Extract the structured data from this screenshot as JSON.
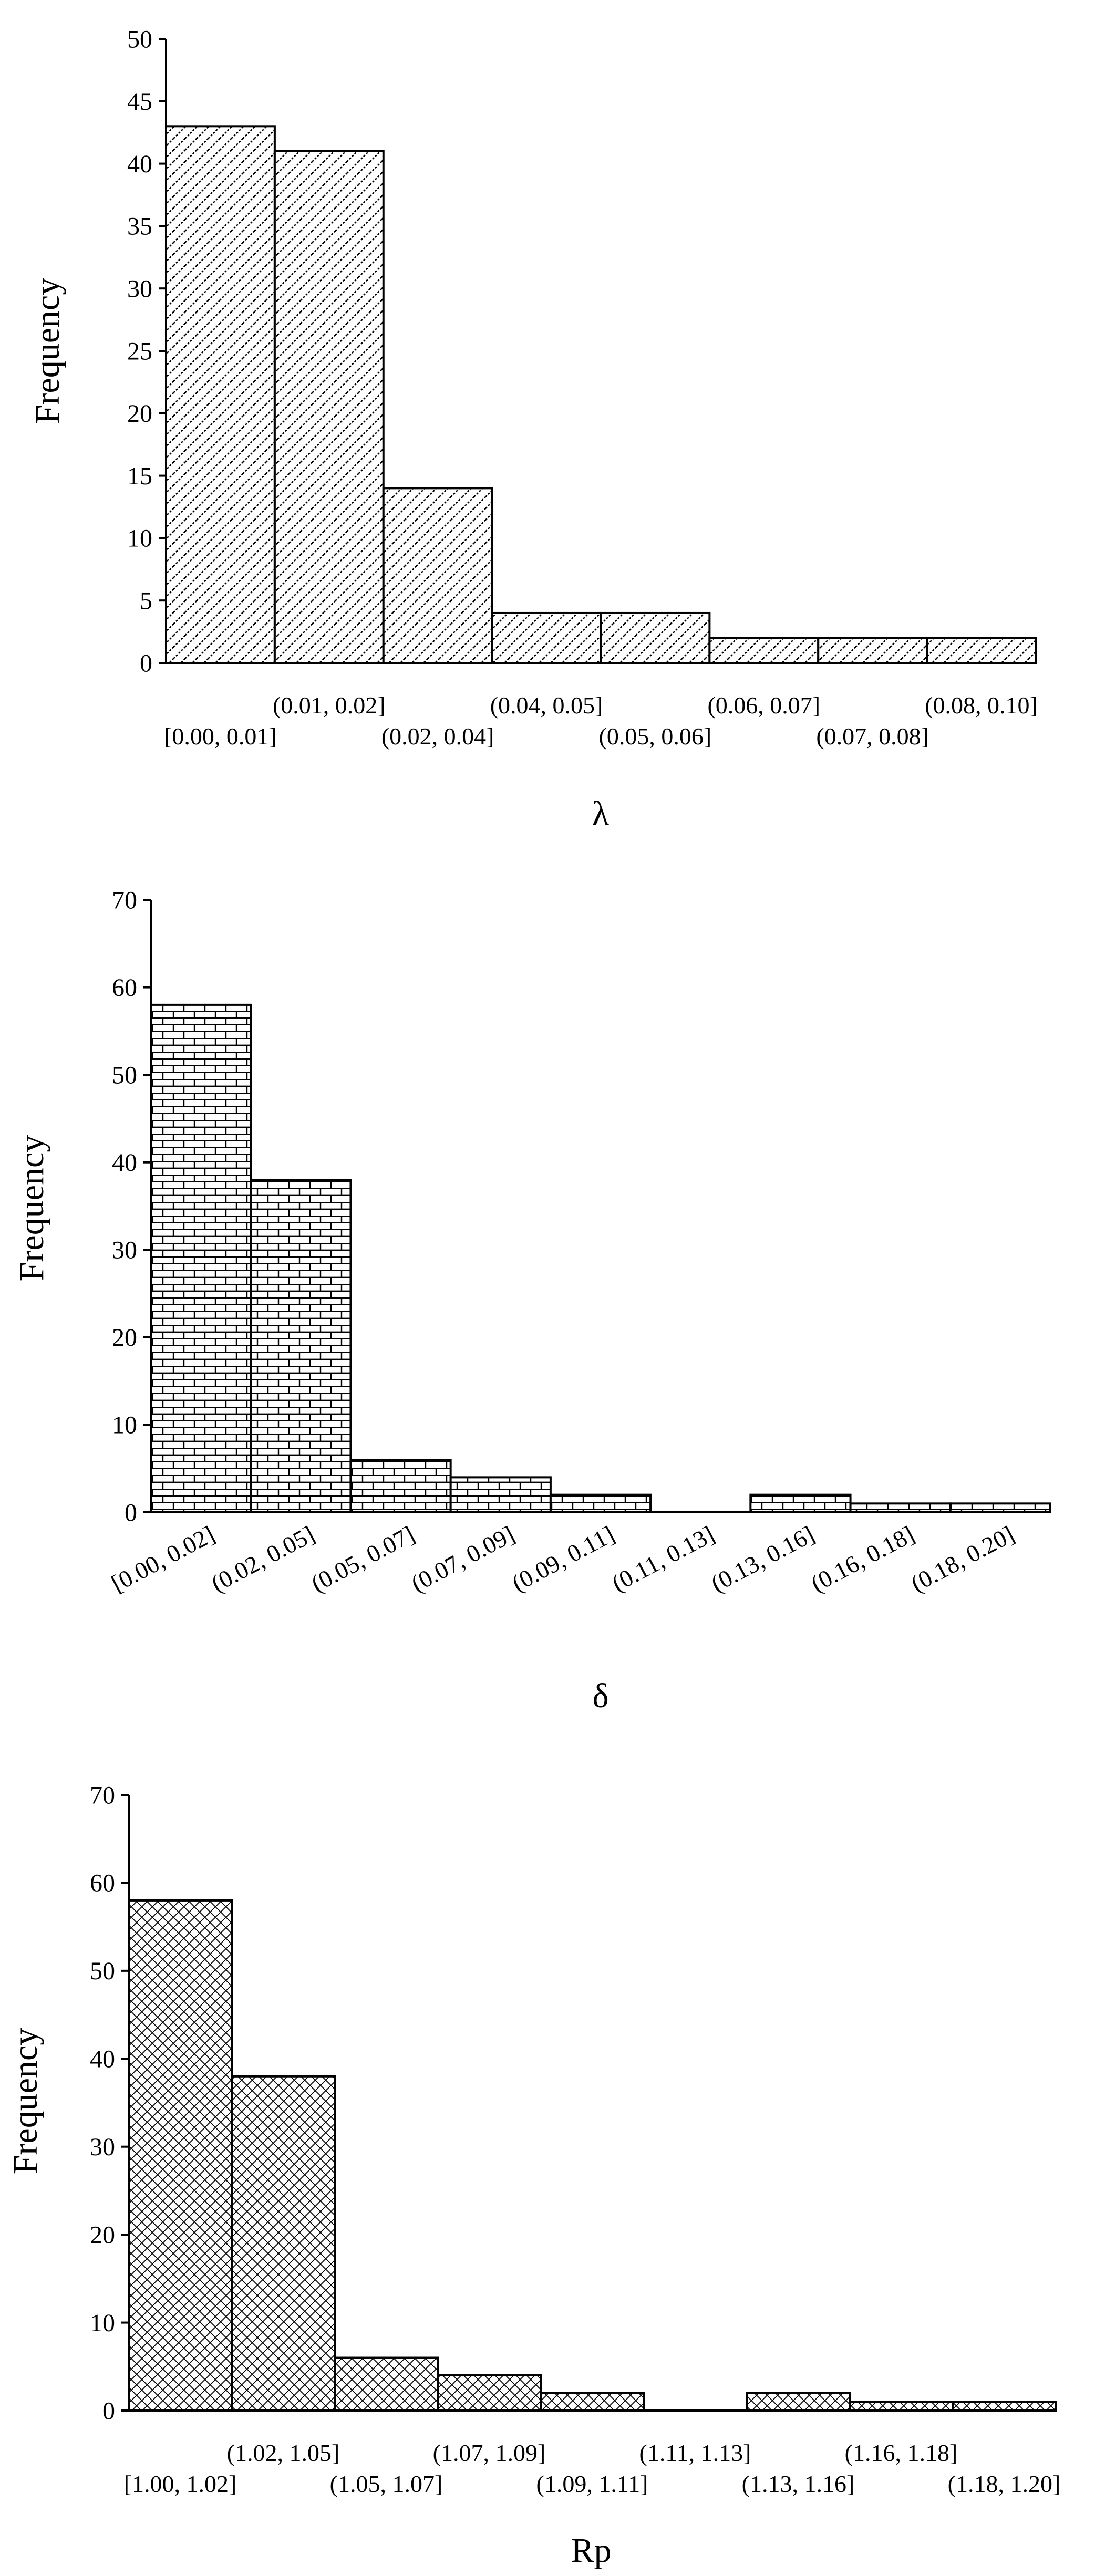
{
  "chart_data": [
    {
      "type": "bar",
      "xlabel": "λ",
      "ylabel": "Frequency",
      "ylim": [
        0,
        50
      ],
      "yticks": [
        0,
        5,
        10,
        15,
        20,
        25,
        30,
        35,
        40,
        45,
        50
      ],
      "categories": [
        "[0.00, 0.01]",
        "(0.01, 0.02]",
        "(0.02, 0.04]",
        "(0.04, 0.05]",
        "(0.05, 0.06]",
        "(0.06, 0.07]",
        "(0.07, 0.08]",
        "(0.08, 0.10]"
      ],
      "values": [
        43,
        41,
        14,
        4,
        4,
        2,
        2,
        2
      ],
      "pattern": "diagonal-dotted",
      "label_style": "staggered",
      "grid": false
    },
    {
      "type": "bar",
      "xlabel": "δ",
      "ylabel": "Frequency",
      "ylim": [
        0,
        70
      ],
      "yticks": [
        0,
        10,
        20,
        30,
        40,
        50,
        60,
        70
      ],
      "categories": [
        "[0.00, 0.02]",
        "(0.02, 0.05]",
        "(0.05, 0.07]",
        "(0.07, 0.09]",
        "(0.09, 0.11]",
        "(0.11, 0.13]",
        "(0.13, 0.16]",
        "(0.16, 0.18]",
        "(0.18, 0.20]"
      ],
      "values": [
        58,
        38,
        6,
        4,
        2,
        0,
        2,
        1,
        1
      ],
      "pattern": "brick",
      "label_style": "rotated",
      "grid": false
    },
    {
      "type": "bar",
      "xlabel": "Rp",
      "ylabel": "Frequency",
      "ylim": [
        0,
        70
      ],
      "yticks": [
        0,
        10,
        20,
        30,
        40,
        50,
        60,
        70
      ],
      "categories": [
        "[1.00, 1.02]",
        "(1.02, 1.05]",
        "(1.05, 1.07]",
        "(1.07, 1.09]",
        "(1.09, 1.11]",
        "(1.11, 1.13]",
        "(1.13, 1.16]",
        "(1.16, 1.18]",
        "(1.18, 1.20]"
      ],
      "values": [
        58,
        38,
        6,
        4,
        2,
        0,
        2,
        1,
        1
      ],
      "pattern": "crosshatch",
      "label_style": "staggered",
      "grid": false
    }
  ]
}
